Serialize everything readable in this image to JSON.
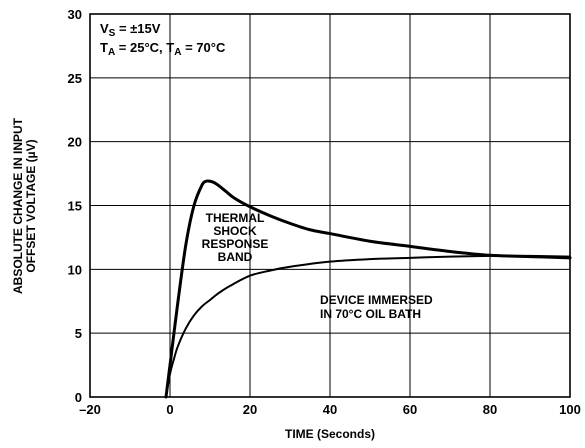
{
  "chart_data": {
    "type": "line",
    "title": "",
    "xlabel": "TIME (Seconds)",
    "ylabel_lines": [
      "ABSOLUTE CHANGE IN INPUT",
      "OFFSET VOLTAGE (µV)"
    ],
    "xlim": [
      -20,
      100
    ],
    "ylim": [
      0,
      30
    ],
    "x_ticks": [
      -20,
      0,
      20,
      40,
      60,
      80,
      100
    ],
    "x_tick_labels": [
      "–20",
      "0",
      "20",
      "40",
      "60",
      "80",
      "100"
    ],
    "y_ticks": [
      0,
      5,
      10,
      15,
      20,
      25,
      30
    ],
    "y_tick_labels": [
      "0",
      "5",
      "10",
      "15",
      "20",
      "25",
      "30"
    ],
    "grid": true,
    "conditions": {
      "line1": {
        "main": "V",
        "sub": "S",
        "rest": " = ±15V"
      },
      "line2": {
        "a": "T",
        "a_sub": "A",
        "a_rest": " = 25°C, ",
        "b": "T",
        "b_sub": "A",
        "b_rest": " = 70°C"
      }
    },
    "series": [
      {
        "label_lines": [
          "THERMAL",
          "SHOCK",
          "RESPONSE",
          "BAND"
        ],
        "stroke_width": 3,
        "x": [
          -1,
          0,
          2,
          4,
          6,
          8,
          9,
          10,
          11,
          12,
          14,
          16,
          20,
          25,
          30,
          35,
          40,
          50,
          60,
          70,
          80,
          90,
          100
        ],
        "y": [
          0,
          2.5,
          7.5,
          12,
          15,
          16.6,
          16.9,
          16.9,
          16.8,
          16.6,
          16.1,
          15.6,
          14.9,
          14.2,
          13.6,
          13.1,
          12.8,
          12.2,
          11.8,
          11.4,
          11.1,
          11.0,
          10.9
        ]
      },
      {
        "label_lines": [
          "DEVICE IMMERSED",
          "IN 70°C OIL BATH"
        ],
        "stroke_width": 2,
        "x": [
          -1,
          0,
          1,
          2,
          4,
          6,
          8,
          10,
          12,
          15,
          20,
          25,
          30,
          40,
          50,
          60,
          70,
          80,
          90,
          100
        ],
        "y": [
          0,
          1.8,
          3.0,
          4.0,
          5.4,
          6.4,
          7.1,
          7.6,
          8.1,
          8.7,
          9.5,
          9.9,
          10.2,
          10.6,
          10.8,
          10.9,
          11.0,
          11.05,
          11.05,
          11.0
        ]
      }
    ]
  }
}
